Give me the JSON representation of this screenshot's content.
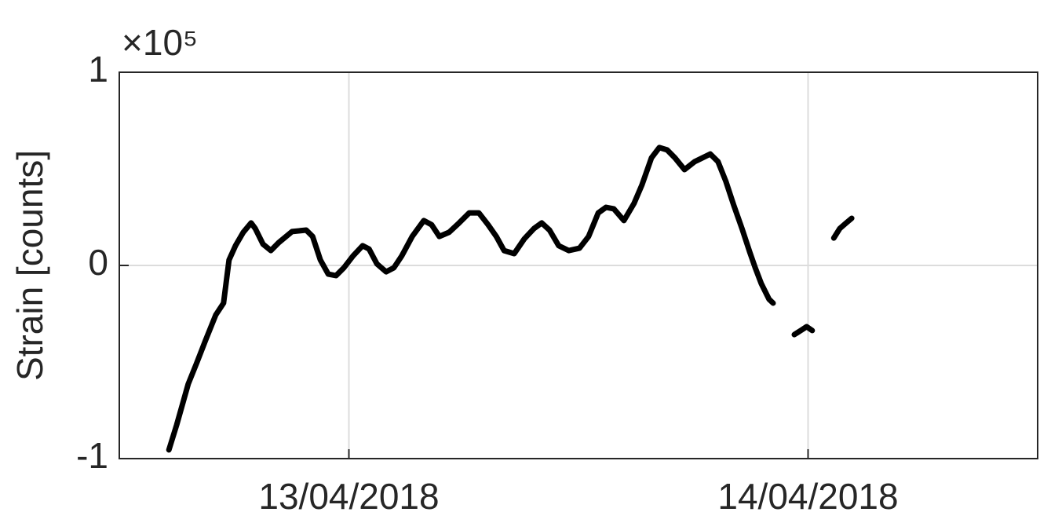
{
  "chart_data": {
    "type": "line",
    "y_label": "Strain [counts]",
    "y_exponent_label": "×10⁵",
    "color": "#000000",
    "grid": true,
    "xlim": [
      12.5,
      14.5
    ],
    "xticks": [
      {
        "value": 13,
        "label": "13/04/2018"
      },
      {
        "value": 14,
        "label": "14/04/2018"
      }
    ],
    "ylim": [
      -100000,
      100000
    ],
    "yticks": [
      {
        "value": -100000,
        "label": "-1"
      },
      {
        "value": 0,
        "label": "0"
      },
      {
        "value": 100000,
        "label": "1"
      }
    ],
    "x": [
      12.608,
      12.625,
      12.65,
      12.668,
      12.688,
      12.71,
      12.727,
      12.739,
      12.753,
      12.77,
      12.787,
      12.796,
      12.813,
      12.83,
      12.847,
      12.876,
      12.907,
      12.921,
      12.938,
      12.955,
      12.972,
      12.989,
      13.009,
      13.03,
      13.044,
      13.061,
      13.081,
      13.098,
      13.115,
      13.138,
      13.163,
      13.18,
      13.197,
      13.218,
      13.24,
      13.262,
      13.283,
      13.303,
      13.321,
      13.338,
      13.36,
      13.382,
      13.403,
      13.42,
      13.437,
      13.457,
      13.479,
      13.502,
      13.522,
      13.543,
      13.56,
      13.577,
      13.599,
      13.621,
      13.638,
      13.659,
      13.676,
      13.693,
      13.71,
      13.731,
      13.753,
      13.787,
      13.804,
      13.821,
      13.838,
      13.856,
      13.873,
      13.885,
      13.898,
      13.915,
      13.924,
      13.95,
      13.97,
      13.984,
      13.997,
      14.009,
      14.03,
      14.056,
      14.069,
      14.083,
      14.095
    ],
    "values": [
      -95500,
      -82500,
      -61400,
      -50800,
      -38600,
      -25600,
      -19500,
      2800,
      10200,
      17100,
      22000,
      19100,
      11000,
      7700,
      11800,
      17500,
      18300,
      15000,
      2800,
      -4500,
      -5300,
      -1200,
      4900,
      10200,
      8500,
      800,
      -3300,
      -1200,
      4900,
      15000,
      23200,
      21100,
      15000,
      17100,
      22000,
      27200,
      27200,
      21100,
      15000,
      7700,
      6100,
      13800,
      19100,
      22000,
      18300,
      10200,
      7700,
      8900,
      15000,
      27200,
      30100,
      29300,
      23200,
      32100,
      41500,
      55700,
      61000,
      59800,
      55700,
      49600,
      53700,
      57700,
      53700,
      43500,
      31300,
      19100,
      6900,
      -1200,
      -9300,
      -17500,
      -19500,
      null,
      -35800,
      -33700,
      -31700,
      -33700,
      null,
      14200,
      19100,
      22000,
      24400
    ]
  }
}
